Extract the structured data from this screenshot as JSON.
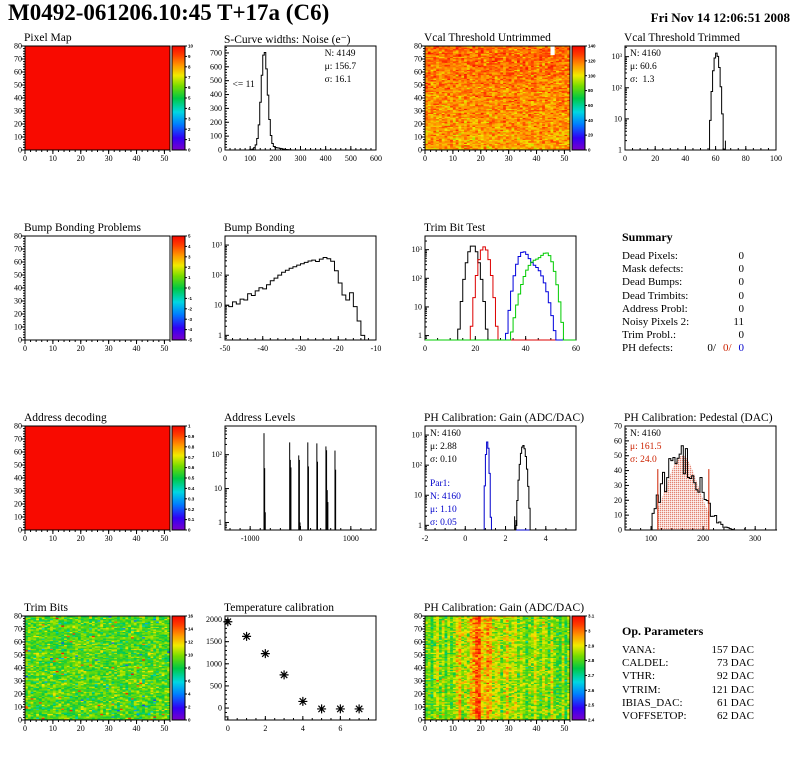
{
  "header": {
    "title": "M0492-061206.10:45 T+17a (C6)",
    "date": "Fri Nov 14 12:06:51 2008"
  },
  "colors": {
    "red": "#cc2200",
    "blue": "#0000cc",
    "green": "#00cc00",
    "black": "#000000"
  },
  "summary": {
    "title": "Summary",
    "rows": [
      {
        "label": "Dead Pixels:",
        "value": "0"
      },
      {
        "label": "Mask defects:",
        "value": "0"
      },
      {
        "label": "Dead Bumps:",
        "value": "0"
      },
      {
        "label": "Dead Trimbits:",
        "value": "0"
      },
      {
        "label": "Address Probl:",
        "value": "0"
      },
      {
        "label": "Noisy Pixels 2:",
        "value": "11"
      },
      {
        "label": "Trim Probl.:",
        "value": "0"
      }
    ],
    "ph_defects": {
      "label": "PH defects:",
      "parts": [
        {
          "text": "0/",
          "color": "#000000"
        },
        {
          "text": "0/",
          "color": "#cc2200"
        },
        {
          "text": "0",
          "color": "#0000cc"
        }
      ]
    }
  },
  "op_parameters": {
    "title": "Op. Parameters",
    "rows": [
      {
        "label": "VANA:",
        "value": "157 DAC"
      },
      {
        "label": "CALDEL:",
        "value": "73 DAC"
      },
      {
        "label": "VTHR:",
        "value": "92 DAC"
      },
      {
        "label": "VTRIM:",
        "value": "121 DAC"
      },
      {
        "label": "IBIAS_DAC:",
        "value": "61 DAC"
      },
      {
        "label": "VOFFSETOP:",
        "value": "62 DAC"
      }
    ]
  },
  "chart_data": [
    {
      "id": "pixel-map",
      "type": "heatmap",
      "title": "Pixel Map",
      "mode": "solid",
      "solid_value": 10,
      "nx": 52,
      "ny": 80,
      "xlim": [
        0,
        52
      ],
      "ylim": [
        0,
        80
      ],
      "xticks": [
        0,
        10,
        20,
        30,
        40,
        50
      ],
      "yticks": [
        0,
        10,
        20,
        30,
        40,
        50,
        60,
        70,
        80
      ],
      "minor_x": 2,
      "minor_y": 2,
      "zmin": 0,
      "zmax": 10,
      "cb_labels": [
        "0",
        "1",
        "2",
        "3",
        "4",
        "5",
        "6",
        "7",
        "8",
        "9",
        "10"
      ],
      "seed": 11
    },
    {
      "id": "scurve-noise",
      "type": "hist",
      "title": "S-Curve widths: Noise (e⁻)",
      "xlim": [
        0,
        600
      ],
      "xticks": [
        0,
        100,
        200,
        300,
        400,
        500,
        600
      ],
      "minor_x": 20,
      "ylim": [
        0,
        750
      ],
      "yticks": [
        0,
        100,
        200,
        300,
        400,
        500,
        600,
        700
      ],
      "minor_y": 20,
      "bin_width": 6,
      "components": [
        {
          "shape": "gauss",
          "mu": 156.7,
          "sigma": 13,
          "peak": 710
        },
        {
          "shape": "gauss",
          "mu": 200,
          "sigma": 25,
          "peak": 16
        },
        {
          "shape": "gauss",
          "mu": 122,
          "sigma": 9,
          "peak": 12
        }
      ],
      "stats": [
        {
          "pos": "tr",
          "lines": [
            {
              "t": "N: 4149"
            },
            {
              "t": "μ: 156.7"
            },
            {
              "t": "σ: 16.1"
            }
          ]
        }
      ],
      "annotations": [
        {
          "t": "<= 11",
          "x": 30,
          "y": 455
        }
      ],
      "seed": 3
    },
    {
      "id": "vcal-untrimmed",
      "type": "heatmap",
      "title": "Vcal Threshold Untrimmed",
      "mode": "noise",
      "noise": {
        "mean": 112,
        "sigma": 8,
        "row_grad": 10
      },
      "nx": 52,
      "ny": 80,
      "xlim": [
        0,
        52
      ],
      "ylim": [
        0,
        80
      ],
      "xticks": [
        0,
        10,
        20,
        30,
        40,
        50
      ],
      "yticks": [
        0,
        10,
        20,
        30,
        40,
        50,
        60,
        70,
        80
      ],
      "minor_x": 2,
      "minor_y": 2,
      "zmin": 0,
      "zmax": 140,
      "cb_labels": [
        "0",
        "20",
        "40",
        "60",
        "80",
        "100",
        "120",
        "140"
      ],
      "white_marker": {
        "x0": 45,
        "y0": 73,
        "x1": 46.5,
        "y1": 80
      },
      "seed": 42
    },
    {
      "id": "vcal-trimmed",
      "type": "hist",
      "title": "Vcal Threshold Trimmed",
      "log": true,
      "xlim": [
        0,
        100
      ],
      "xticks": [
        0,
        20,
        40,
        60,
        80,
        100
      ],
      "minor_x": 5,
      "ylim": [
        1,
        2200
      ],
      "bin_width": 1,
      "components": [
        {
          "shape": "gauss",
          "mu": 60.6,
          "sigma": 1.3,
          "peak": 1300
        }
      ],
      "spikes": [
        [
          66.5,
          2
        ]
      ],
      "stats": [
        {
          "pos": "tl",
          "lines": [
            {
              "t": "N: 4160"
            },
            {
              "t": "μ: 60.6"
            },
            {
              "t": "σ:  1.3"
            }
          ]
        }
      ],
      "seed": 4
    },
    {
      "id": "bump-bonding-problems",
      "type": "heatmap",
      "title": "Bump Bonding Problems",
      "mode": "empty",
      "nx": 52,
      "ny": 80,
      "xlim": [
        0,
        52
      ],
      "ylim": [
        0,
        80
      ],
      "xticks": [
        0,
        10,
        20,
        30,
        40,
        50
      ],
      "yticks": [
        0,
        10,
        20,
        30,
        40,
        50,
        60,
        70,
        80
      ],
      "minor_x": 2,
      "minor_y": 2,
      "zmin": -5,
      "zmax": 5,
      "cb_labels": [
        "-5",
        "-4",
        "-3",
        "-2",
        "-1",
        "0",
        "1",
        "2",
        "3",
        "4",
        "5"
      ],
      "seed": 2
    },
    {
      "id": "bump-bonding",
      "type": "hist",
      "title": "Bump Bonding",
      "log": true,
      "xlim": [
        -50,
        -10
      ],
      "xticks": [
        -50,
        -40,
        -30,
        -20,
        -10
      ],
      "minor_x": 2,
      "ylim": [
        0.7,
        2000
      ],
      "bin_width": 1,
      "components": [
        {
          "shape": "bins",
          "x0": -50,
          "values": [
            10,
            9,
            13,
            11,
            16,
            15,
            24,
            21,
            30,
            38,
            35,
            48,
            65,
            80,
            100,
            125,
            145,
            170,
            190,
            215,
            240,
            265,
            295,
            315,
            285,
            340,
            385,
            350,
            290,
            140,
            55,
            22,
            15,
            26,
            9,
            3,
            1
          ]
        }
      ],
      "seed": 5
    },
    {
      "id": "trim-bit-test",
      "type": "multi_hist",
      "title": "Trim Bit Test",
      "log": true,
      "xlim": [
        0,
        60
      ],
      "xticks": [
        0,
        20,
        40,
        60
      ],
      "minor_x": 5,
      "ylim": [
        0.7,
        3000
      ],
      "bin_width": 1,
      "series": [
        {
          "name": "trim-bit-14",
          "color": "#000000",
          "components": [
            {
              "shape": "gauss",
              "mu": 19,
              "sigma": 1.5,
              "peak": 1400
            }
          ]
        },
        {
          "name": "trim-bit-13",
          "color": "#dd0000",
          "components": [
            {
              "shape": "gauss",
              "mu": 23.5,
              "sigma": 1.4,
              "peak": 1250
            }
          ]
        },
        {
          "name": "trim-bit-11",
          "color": "#0000dd",
          "components": [
            {
              "shape": "gauss",
              "mu": 39,
              "sigma": 1.8,
              "peak": 800
            },
            {
              "shape": "gauss",
              "mu": 43.5,
              "sigma": 2.5,
              "peak": 250
            }
          ]
        },
        {
          "name": "trim-bit-7",
          "color": "#00cc00",
          "components": [
            {
              "shape": "gauss",
              "mu": 44,
              "sigma": 2.8,
              "peak": 420
            },
            {
              "shape": "gauss",
              "mu": 48.5,
              "sigma": 1.8,
              "peak": 650
            }
          ]
        }
      ],
      "seed": 6
    },
    {
      "id": "address-decoding",
      "type": "heatmap",
      "title": "Address decoding",
      "mode": "solid",
      "solid_value": 1,
      "nx": 52,
      "ny": 80,
      "xlim": [
        0,
        52
      ],
      "ylim": [
        0,
        80
      ],
      "xticks": [
        0,
        10,
        20,
        30,
        40,
        50
      ],
      "yticks": [
        0,
        10,
        20,
        30,
        40,
        50,
        60,
        70,
        80
      ],
      "minor_x": 2,
      "minor_y": 2,
      "zmin": 0,
      "zmax": 1,
      "cb_labels": [
        "0",
        "0.1",
        "0.2",
        "0.3",
        "0.4",
        "0.5",
        "0.6",
        "0.7",
        "0.8",
        "0.9",
        "1"
      ],
      "seed": 7
    },
    {
      "id": "address-levels",
      "type": "hist",
      "title": "Address Levels",
      "log": true,
      "xlim": [
        -1500,
        1500
      ],
      "xticks": [
        -1000,
        0,
        1000
      ],
      "minor_x": 200,
      "ylim": [
        0.6,
        700
      ],
      "bin_width": 10,
      "components": [],
      "spikes": [
        [
          -725,
          430
        ],
        [
          -712,
          40
        ],
        [
          -700,
          2
        ],
        [
          -215,
          230
        ],
        [
          -202,
          70
        ],
        [
          -190,
          42
        ],
        [
          -35,
          95
        ],
        [
          -22,
          70
        ],
        [
          -10,
          1
        ],
        [
          145,
          230
        ],
        [
          158,
          45
        ],
        [
          325,
          215
        ],
        [
          338,
          62
        ],
        [
          505,
          175
        ],
        [
          518,
          135
        ],
        [
          531,
          9
        ],
        [
          544,
          4
        ],
        [
          685,
          132
        ],
        [
          698,
          36
        ]
      ],
      "seed": 8
    },
    {
      "id": "ph-gain-hist",
      "type": "multi_hist",
      "title": "PH Calibration: Gain (ADC/DAC)",
      "log": true,
      "xlim": [
        -2,
        5.5
      ],
      "xticks": [
        -2,
        0,
        2,
        4
      ],
      "minor_x": 0.5,
      "ylim": [
        0.7,
        2000
      ],
      "bin_width": 0.06,
      "series": [
        {
          "name": "par1",
          "color": "#0000cc",
          "components": [
            {
              "shape": "gauss",
              "mu": 1.1,
              "sigma": 0.05,
              "peak": 600
            }
          ]
        },
        {
          "name": "par0",
          "color": "#000000",
          "components": [
            {
              "shape": "gauss",
              "mu": 2.88,
              "sigma": 0.1,
              "peak": 450
            }
          ],
          "spikes": [
            [
              2.45,
              2
            ],
            [
              2.52,
              1.5
            ]
          ]
        }
      ],
      "stats": [
        {
          "pos": "tl",
          "lines": [
            {
              "t": "N: 4160"
            },
            {
              "t": "μ: 2.88"
            },
            {
              "t": "σ: 0.10"
            }
          ]
        },
        {
          "pos": "tl",
          "dy": 50,
          "lines": [
            {
              "t": "Par1:",
              "c": "#0000cc"
            },
            {
              "t": "N: 4160",
              "c": "#0000cc"
            },
            {
              "t": "μ: 1.10",
              "c": "#0000cc"
            },
            {
              "t": "σ: 0.05",
              "c": "#0000cc"
            }
          ]
        }
      ],
      "seed": 9
    },
    {
      "id": "ph-pedestal",
      "type": "hist",
      "title": "PH Calibration: Pedestal (DAC)",
      "xlim": [
        50,
        340
      ],
      "xticks": [
        100,
        200,
        300
      ],
      "minor_x": 20,
      "ylim": [
        0,
        70
      ],
      "yticks": [
        0,
        10,
        20,
        30,
        40,
        50,
        60,
        70
      ],
      "minor_y": 2,
      "bin_width": 4,
      "noise": 0.35,
      "clip": [
        104,
        258
      ],
      "cap": 67,
      "components": [
        {
          "shape": "gauss",
          "mu": 160,
          "sigma": 32,
          "peak": 56
        }
      ],
      "spikes": [
        [
          281,
          2
        ]
      ],
      "red_lines": {
        "x": [
          113,
          211
        ],
        "h": 41,
        "color": "#cc2200"
      },
      "dot_fill": {
        "mu": 160,
        "sigma": 30,
        "peak": 50,
        "from": 113,
        "to": 211,
        "color": "#cc2200"
      },
      "stats": [
        {
          "pos": "tl",
          "lines": [
            {
              "t": "N: 4160",
              "c": "#000000"
            },
            {
              "t": "μ: 161.5",
              "c": "#cc2200"
            },
            {
              "t": "σ: 24.0",
              "c": "#cc2200"
            }
          ]
        }
      ],
      "seed": 10
    },
    {
      "id": "trim-bits-map",
      "type": "heatmap",
      "title": "Trim Bits",
      "mode": "noise",
      "noise": {
        "mean": 9.3,
        "sigma": 1.1,
        "row_grad": 0,
        "out_hi": 0.012,
        "out_lo": 0.012
      },
      "nx": 52,
      "ny": 80,
      "xlim": [
        0,
        52
      ],
      "ylim": [
        0,
        80
      ],
      "xticks": [
        0,
        10,
        20,
        30,
        40,
        50
      ],
      "yticks": [
        0,
        10,
        20,
        30,
        40,
        50,
        60,
        70,
        80
      ],
      "minor_x": 2,
      "minor_y": 2,
      "zmin": 0,
      "zmax": 16,
      "cb_labels": [
        "0",
        "2",
        "4",
        "6",
        "8",
        "10",
        "12",
        "14",
        "16"
      ],
      "seed": 12
    },
    {
      "id": "temperature-calibration",
      "type": "scatter",
      "title": "Temperature calibration",
      "xlim": [
        -0.15,
        7.9
      ],
      "xticks": [
        0,
        2,
        4,
        6
      ],
      "minor_x": 0.5,
      "ylim": [
        -270,
        2080
      ],
      "yticks": [
        0,
        500,
        1000,
        1500,
        2000
      ],
      "minor_y": 100,
      "points": [
        [
          0,
          1950
        ],
        [
          1,
          1620
        ],
        [
          2,
          1230
        ],
        [
          3,
          750
        ],
        [
          4,
          150
        ],
        [
          5,
          -20
        ],
        [
          6,
          -20
        ],
        [
          7,
          -20
        ]
      ],
      "marker": "asterisk",
      "seed": 13
    },
    {
      "id": "ph-gain-map",
      "type": "heatmap",
      "title": "PH Calibration: Gain (ADC/DAC)",
      "mode": "stripes",
      "nx": 52,
      "ny": 80,
      "xlim": [
        0,
        52
      ],
      "ylim": [
        0,
        80
      ],
      "xticks": [
        0,
        10,
        20,
        30,
        40,
        50
      ],
      "yticks": [
        0,
        10,
        20,
        30,
        40,
        50,
        60,
        70,
        80
      ],
      "minor_x": 2,
      "minor_y": 2,
      "zmin": 2.35,
      "zmax": 3.15,
      "cb_labels": [
        "2.4",
        "2.5",
        "2.6",
        "2.7",
        "2.8",
        "2.9",
        "3",
        "3.1"
      ],
      "seed": 14
    }
  ]
}
